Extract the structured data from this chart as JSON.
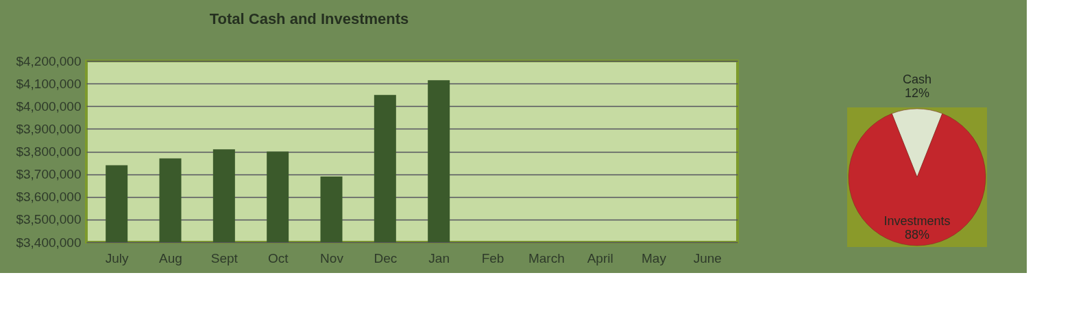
{
  "chart_data": [
    {
      "type": "bar",
      "title": "Total Cash and Investments",
      "categories": [
        "July",
        "Aug",
        "Sept",
        "Oct",
        "Nov",
        "Dec",
        "Jan",
        "Feb",
        "March",
        "April",
        "May",
        "June"
      ],
      "values": [
        3740000,
        3770000,
        3810000,
        3800000,
        3690000,
        4050000,
        4115000,
        null,
        null,
        null,
        null,
        null
      ],
      "color": "#3b5a2b",
      "ylim": [
        3400000,
        4200000
      ],
      "yticks": [
        {
          "value": 3400000,
          "label": "$3,400,000"
        },
        {
          "value": 3500000,
          "label": "$3,500,000"
        },
        {
          "value": 3600000,
          "label": "$3,600,000"
        },
        {
          "value": 3700000,
          "label": "$3,700,000"
        },
        {
          "value": 3800000,
          "label": "$3,800,000"
        },
        {
          "value": 3900000,
          "label": "$3,900,000"
        },
        {
          "value": 4000000,
          "label": "$4,000,000"
        },
        {
          "value": 4100000,
          "label": "$4,100,000"
        },
        {
          "value": 4200000,
          "label": "$4,200,000"
        }
      ],
      "grid": "y"
    },
    {
      "type": "pie",
      "categories": [
        "Cash",
        "Investments"
      ],
      "values": [
        12,
        88
      ],
      "colors": [
        "#dde6cf",
        "#c3262c"
      ],
      "value_labels": [
        "12%",
        "88%"
      ]
    }
  ]
}
